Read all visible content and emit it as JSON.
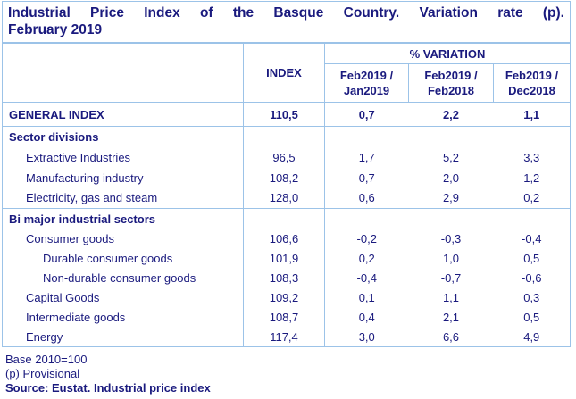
{
  "colors": {
    "border": "#9cc3e8",
    "text": "#1a1a7e",
    "background": "#ffffff"
  },
  "title": {
    "line1": "Industrial Price Index of the Basque Country. Variation rate (p).",
    "line2": "February 2019",
    "full": "Industrial Price Index of the Basque Country. Variation rate (p). February 2019"
  },
  "table": {
    "corner_label": "",
    "index_column_label": "INDEX",
    "variation_group_label": "% VARIATION",
    "variation_columns": [
      "Feb2019 / Jan2019",
      "Feb2019 / Feb2018",
      "Feb2019 / Dec2018"
    ],
    "rows": [
      {
        "label": "GENERAL INDEX",
        "type": "general",
        "indent": 0,
        "section_end": false,
        "values": [
          "110,5",
          "0,7",
          "2,2",
          "1,1"
        ]
      },
      {
        "label": "Sector divisions",
        "type": "section",
        "indent": 0,
        "section_end": false,
        "values": [
          "",
          "",
          "",
          ""
        ]
      },
      {
        "label": "Extractive Industries",
        "type": "sector",
        "indent": 1,
        "section_end": false,
        "values": [
          "96,5",
          "1,7",
          "5,2",
          "3,3"
        ]
      },
      {
        "label": "Manufacturing industry",
        "type": "sector",
        "indent": 1,
        "section_end": false,
        "values": [
          "108,2",
          "0,7",
          "2,0",
          "1,2"
        ]
      },
      {
        "label": "Electricity, gas and steam",
        "type": "sector",
        "indent": 1,
        "section_end": true,
        "values": [
          "128,0",
          "0,6",
          "2,9",
          "0,2"
        ]
      },
      {
        "label": "Bi major industrial sectors",
        "type": "section",
        "indent": 0,
        "section_end": false,
        "values": [
          "",
          "",
          "",
          ""
        ]
      },
      {
        "label": "Consumer goods",
        "type": "data",
        "indent": 1,
        "section_end": false,
        "values": [
          "106,6",
          "-0,2",
          "-0,3",
          "-0,4"
        ]
      },
      {
        "label": "Durable consumer goods",
        "type": "data",
        "indent": 2,
        "section_end": false,
        "values": [
          "101,9",
          "0,2",
          "1,0",
          "0,5"
        ]
      },
      {
        "label": "Non-durable consumer goods",
        "type": "data",
        "indent": 2,
        "section_end": false,
        "values": [
          "108,3",
          "-0,4",
          "-0,7",
          "-0,6"
        ]
      },
      {
        "label": "Capital Goods",
        "type": "data",
        "indent": 1,
        "section_end": false,
        "values": [
          "109,2",
          "0,1",
          "1,1",
          "0,3"
        ]
      },
      {
        "label": "Intermediate goods",
        "type": "data",
        "indent": 1,
        "section_end": false,
        "values": [
          "108,7",
          "0,4",
          "2,1",
          "0,5"
        ]
      },
      {
        "label": "Energy",
        "type": "data",
        "indent": 1,
        "section_end": false,
        "values": [
          "117,4",
          "3,0",
          "6,6",
          "4,9"
        ]
      }
    ]
  },
  "footnotes": [
    {
      "text": "Base 2010=100",
      "bold": false
    },
    {
      "text": "(p) Provisional",
      "bold": false
    },
    {
      "text": "Source: Eustat. Industrial price index",
      "bold": true
    }
  ],
  "chart_data": {
    "type": "table",
    "title": "Industrial Price Index of the Basque Country. Variation rate (p). February 2019",
    "columns": [
      "INDEX",
      "% VARIATION Feb2019 / Jan2019",
      "% VARIATION Feb2019 / Feb2018",
      "% VARIATION Feb2019 / Dec2018"
    ],
    "rows": [
      {
        "group": null,
        "label": "GENERAL INDEX",
        "index": 110.5,
        "var_feb2019_jan2019": 0.7,
        "var_feb2019_feb2018": 2.2,
        "var_feb2019_dec2018": 1.1
      },
      {
        "group": "Sector divisions",
        "label": "Extractive Industries",
        "index": 96.5,
        "var_feb2019_jan2019": 1.7,
        "var_feb2019_feb2018": 5.2,
        "var_feb2019_dec2018": 3.3
      },
      {
        "group": "Sector divisions",
        "label": "Manufacturing industry",
        "index": 108.2,
        "var_feb2019_jan2019": 0.7,
        "var_feb2019_feb2018": 2.0,
        "var_feb2019_dec2018": 1.2
      },
      {
        "group": "Sector divisions",
        "label": "Electricity, gas and steam",
        "index": 128.0,
        "var_feb2019_jan2019": 0.6,
        "var_feb2019_feb2018": 2.9,
        "var_feb2019_dec2018": 0.2
      },
      {
        "group": "Bi major industrial sectors",
        "label": "Consumer goods",
        "index": 106.6,
        "var_feb2019_jan2019": -0.2,
        "var_feb2019_feb2018": -0.3,
        "var_feb2019_dec2018": -0.4
      },
      {
        "group": "Bi major industrial sectors",
        "label": "Durable consumer goods",
        "index": 101.9,
        "var_feb2019_jan2019": 0.2,
        "var_feb2019_feb2018": 1.0,
        "var_feb2019_dec2018": 0.5
      },
      {
        "group": "Bi major industrial sectors",
        "label": "Non-durable consumer goods",
        "index": 108.3,
        "var_feb2019_jan2019": -0.4,
        "var_feb2019_feb2018": -0.7,
        "var_feb2019_dec2018": -0.6
      },
      {
        "group": "Bi major industrial sectors",
        "label": "Capital Goods",
        "index": 109.2,
        "var_feb2019_jan2019": 0.1,
        "var_feb2019_feb2018": 1.1,
        "var_feb2019_dec2018": 0.3
      },
      {
        "group": "Bi major industrial sectors",
        "label": "Intermediate goods",
        "index": 108.7,
        "var_feb2019_jan2019": 0.4,
        "var_feb2019_feb2018": 2.1,
        "var_feb2019_dec2018": 0.5
      },
      {
        "group": "Bi major industrial sectors",
        "label": "Energy",
        "index": 117.4,
        "var_feb2019_jan2019": 3.0,
        "var_feb2019_feb2018": 6.6,
        "var_feb2019_dec2018": 4.9
      }
    ],
    "notes": [
      "Base 2010=100",
      "(p) Provisional",
      "Source: Eustat. Industrial price index"
    ],
    "decimal_separator": ","
  }
}
